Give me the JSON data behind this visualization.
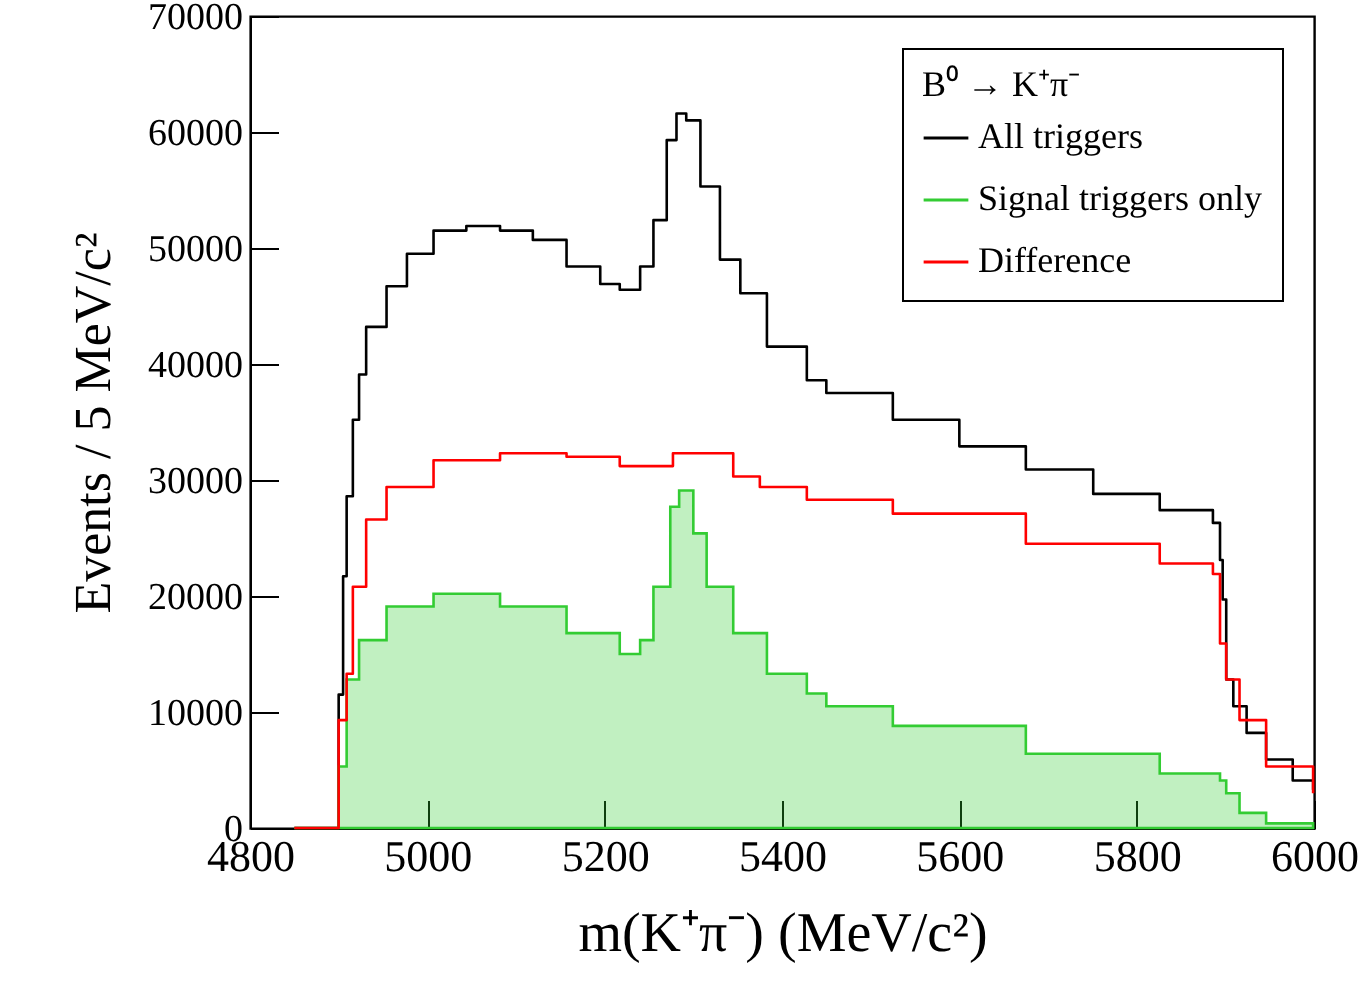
{
  "chart_data": {
    "type": "step",
    "xlabel": "m(K⁺π⁻) (MeV/c²)",
    "ylabel": "Events / 5 MeV/c²",
    "legend_title": "B⁰ → K⁺π⁻",
    "legend": "top right",
    "xlim": [
      4800,
      6000
    ],
    "xticks": [
      4800,
      5000,
      5200,
      5400,
      5600,
      5800,
      6000
    ],
    "ylim": [
      0,
      70000
    ],
    "yticks": [
      0,
      10000,
      20000,
      30000,
      40000,
      50000,
      60000,
      70000
    ],
    "grid": false,
    "series": [
      {
        "name": "All triggers",
        "color": "#000000",
        "x": [
          4850,
          4900,
          4905,
          4909,
          4916,
          4923,
          4931,
          4954,
          4977,
          5007,
          5044,
          5082,
          5119,
          5157,
          5195,
          5217,
          5240,
          5255,
          5270,
          5281,
          5292,
          5308,
          5330,
          5353,
          5383,
          5428,
          5450,
          5525,
          5600,
          5675,
          5751,
          5826,
          5886,
          5894,
          5897,
          5901,
          5909,
          5924,
          5946,
          5976,
          5999
        ],
        "values": [
          0,
          11500,
          21700,
          28600,
          35200,
          39100,
          43200,
          46700,
          49500,
          51500,
          51900,
          51500,
          50700,
          48400,
          46900,
          46400,
          48400,
          52400,
          59300,
          61600,
          61000,
          55300,
          49000,
          46100,
          41500,
          38600,
          37500,
          35200,
          32900,
          30900,
          28800,
          27400,
          26300,
          23100,
          19700,
          12800,
          10500,
          8200,
          5900,
          4100,
          3300
        ]
      },
      {
        "name": "Signal triggers only",
        "type": "area",
        "color": "#33cc33",
        "x": [
          4850,
          4900,
          4909,
          4923,
          4954,
          5007,
          5082,
          5157,
          5217,
          5240,
          5255,
          5274,
          5284,
          5300,
          5315,
          5345,
          5383,
          5428,
          5450,
          5525,
          5675,
          5826,
          5894,
          5901,
          5916,
          5946,
          5999
        ],
        "values": [
          0,
          5300,
          12800,
          16200,
          19100,
          20200,
          19100,
          16800,
          15000,
          16200,
          20800,
          27700,
          29100,
          25400,
          20800,
          16800,
          13300,
          11600,
          10500,
          8800,
          6400,
          4700,
          4100,
          3000,
          1300,
          400,
          0
        ]
      },
      {
        "name": "Difference",
        "color": "#ff0000",
        "x": [
          4850,
          4900,
          4909,
          4916,
          4931,
          4954,
          5007,
          5082,
          5157,
          5217,
          5277,
          5345,
          5375,
          5428,
          5525,
          5675,
          5826,
          5886,
          5894,
          5901,
          5916,
          5946,
          5999
        ],
        "values": [
          0,
          9300,
          13300,
          20800,
          26600,
          29400,
          31700,
          32300,
          32000,
          31200,
          32300,
          30300,
          29400,
          28300,
          27100,
          24500,
          22800,
          21900,
          15900,
          12800,
          9300,
          5300,
          3000
        ]
      }
    ]
  }
}
